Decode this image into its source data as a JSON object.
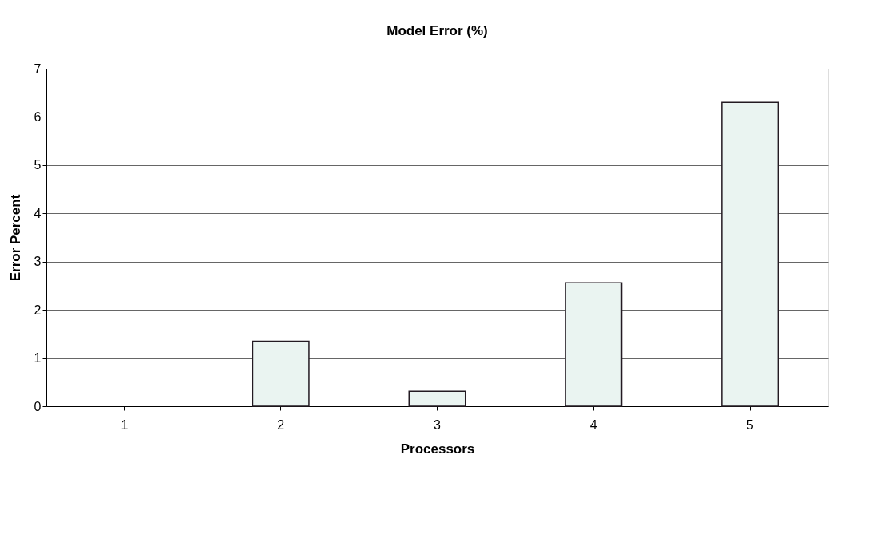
{
  "chart_data": {
    "type": "bar",
    "title": "Model Error (%)",
    "xlabel": "Processors",
    "ylabel": "Error Percent",
    "categories": [
      "1",
      "2",
      "3",
      "4",
      "5"
    ],
    "values": [
      null,
      1.35,
      0.31,
      2.56,
      6.3
    ],
    "color": "#eaf4f1",
    "ylim": [
      0,
      7
    ],
    "yticks": [
      0,
      1,
      2,
      3,
      4,
      5,
      6,
      7
    ],
    "grid": "y"
  }
}
